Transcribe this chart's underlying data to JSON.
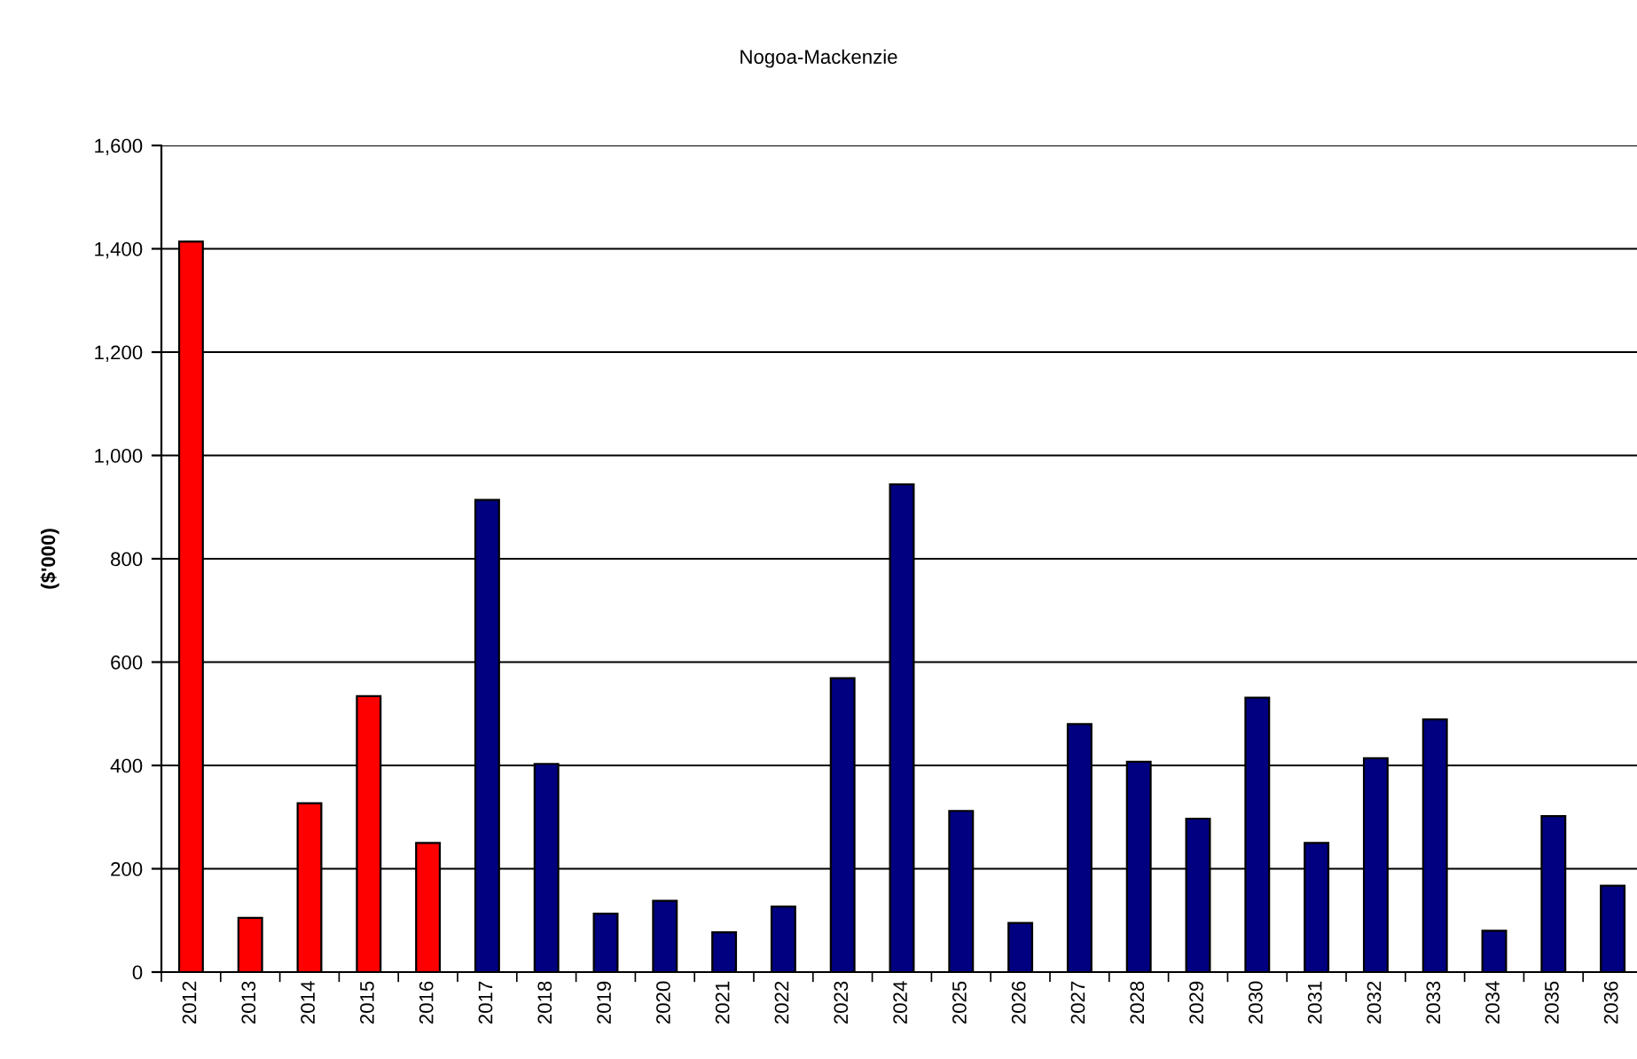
{
  "chart_data": {
    "type": "bar",
    "title": "Nogoa-Mackenzie",
    "ylabel": "($'000)",
    "categories": [
      "2012",
      "2013",
      "2014",
      "2015",
      "2016",
      "2017",
      "2018",
      "2019",
      "2020",
      "2021",
      "2022",
      "2023",
      "2024",
      "2025",
      "2026",
      "2027",
      "2028",
      "2029",
      "2030",
      "2031",
      "2032",
      "2033",
      "2034",
      "2035",
      "2036"
    ],
    "values": [
      1414,
      105,
      327,
      534,
      250,
      914,
      403,
      113,
      138,
      77,
      127,
      569,
      944,
      312,
      95,
      480,
      407,
      297,
      531,
      250,
      414,
      489,
      80,
      302,
      167
    ],
    "colors": [
      "#ff0000",
      "#ff0000",
      "#ff0000",
      "#ff0000",
      "#ff0000",
      "#000080",
      "#000080",
      "#000080",
      "#000080",
      "#000080",
      "#000080",
      "#000080",
      "#000080",
      "#000080",
      "#000080",
      "#000080",
      "#000080",
      "#000080",
      "#000080",
      "#000080",
      "#000080",
      "#000080",
      "#000080",
      "#000080",
      "#000080"
    ],
    "ylim": [
      0,
      1600
    ],
    "yticks": [
      {
        "value": 0,
        "label": "0"
      },
      {
        "value": 200,
        "label": "200"
      },
      {
        "value": 400,
        "label": "400"
      },
      {
        "value": 600,
        "label": "600"
      },
      {
        "value": 800,
        "label": "800"
      },
      {
        "value": 1000,
        "label": "1,000"
      },
      {
        "value": 1200,
        "label": "1,200"
      },
      {
        "value": 1400,
        "label": "1,400"
      },
      {
        "value": 1600,
        "label": "1,600"
      }
    ],
    "grid": "y"
  }
}
